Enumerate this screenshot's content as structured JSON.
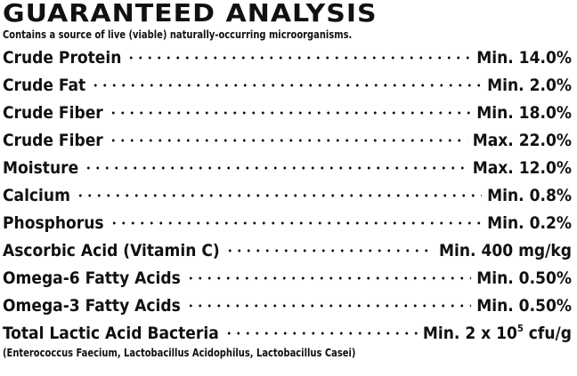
{
  "title": "GUARANTEED ANALYSIS",
  "subtitle": "Contains a source of live (viable) naturally-occurring microorganisms.",
  "rows": [
    {
      "name": "Crude Protein",
      "value": "Min. 14.0%"
    },
    {
      "name": "Crude Fat",
      "value": "Min. 2.0%"
    },
    {
      "name": "Crude Fiber",
      "value": "Min. 18.0%"
    },
    {
      "name": "Crude Fiber",
      "value": "Max. 22.0%"
    },
    {
      "name": "Moisture",
      "value": "Max. 12.0%"
    },
    {
      "name": "Calcium",
      "value": "Min. 0.8%"
    },
    {
      "name": "Phosphorus",
      "value": "Min. 0.2%"
    },
    {
      "name": "Ascorbic Acid (Vitamin C)",
      "value": "Min. 400 mg/kg"
    },
    {
      "name": "Omega-6 Fatty Acids",
      "value": "Min. 0.50%"
    },
    {
      "name": "Omega-3 Fatty Acids",
      "value": "Min. 0.50%"
    }
  ],
  "last_row": {
    "name": "Total Lactic Acid Bacteria",
    "value_prefix": "Min. 2 x 10",
    "value_exponent": "5",
    "value_suffix": " cfu/g"
  },
  "footnote": "(Enterococcus Faecium, Lactobacillus Acidophilus, Lactobacillus Casei)"
}
